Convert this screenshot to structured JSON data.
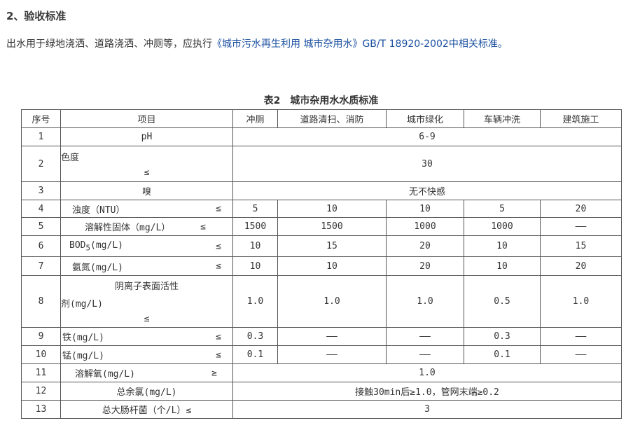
{
  "heading": "2、验收标准",
  "paragraph": {
    "before": "出水用于绿地浇洒、道路浇洒、冲厕等，应执行",
    "link": "《城市污水再生利用 城市杂用水》",
    "after": "GB/T 18920-2002中相关标准。"
  },
  "table": {
    "caption": "表2　城市杂用水水质标准",
    "headers": [
      "序号",
      "项目",
      "冲厕",
      "道路清扫、消防",
      "城市绿化",
      "车辆冲洗",
      "建筑施工"
    ],
    "rows": [
      {
        "no": "1",
        "item": "pH",
        "values": [
          "6-9"
        ]
      },
      {
        "no": "2",
        "item": "色度",
        "op": "≤",
        "values": [
          "30"
        ]
      },
      {
        "no": "3",
        "item": "嗅",
        "values": [
          "无不快感"
        ]
      },
      {
        "no": "4",
        "item": "浊度（NTU）",
        "op": "≤",
        "values": [
          "5",
          "10",
          "10",
          "5",
          "20"
        ]
      },
      {
        "no": "5",
        "item": "溶解性固体（mg/L）",
        "op": "≤",
        "values": [
          "1500",
          "1500",
          "1000",
          "1000",
          "——"
        ]
      },
      {
        "no": "6",
        "item": "BOD",
        "sub": "5",
        "item_suffix": "(mg/L)",
        "op": "≤",
        "values": [
          "10",
          "15",
          "20",
          "10",
          "15"
        ]
      },
      {
        "no": "7",
        "item": "氨氮(mg/L)",
        "op": "≤",
        "values": [
          "10",
          "10",
          "20",
          "10",
          "20"
        ]
      },
      {
        "no": "8",
        "item": "阴离子表面活性",
        "item2": "剂(mg/L)",
        "op": "≤",
        "values": [
          "1.0",
          "1.0",
          "1.0",
          "0.5",
          "1.0"
        ]
      },
      {
        "no": "9",
        "item": "铁(mg/L)",
        "op": "≤",
        "values": [
          "0.3",
          "——",
          "——",
          "0.3",
          "——"
        ]
      },
      {
        "no": "10",
        "item": "锰(mg/L)",
        "op": "≤",
        "values": [
          "0.1",
          "——",
          "——",
          "0.1",
          "——"
        ]
      },
      {
        "no": "11",
        "item": "溶解氧(mg/L)",
        "op": "≥",
        "values": [
          "1.0"
        ]
      },
      {
        "no": "12",
        "item": "总余氯(mg/L)",
        "values": [
          "接触30min后≥1.0，管网末端≥0.2"
        ]
      },
      {
        "no": "13",
        "item": "总大肠杆菌（个/L）≤",
        "values": [
          "3"
        ]
      }
    ]
  }
}
